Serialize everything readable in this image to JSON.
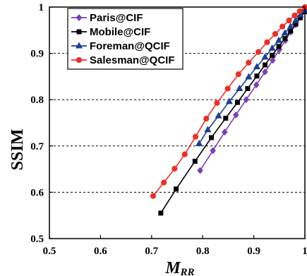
{
  "chart_data": {
    "type": "line",
    "title": "",
    "ylabel": "SSIM",
    "xlabel": {
      "main": "M",
      "sub": "RR"
    },
    "xlim": [
      0.5,
      1.0
    ],
    "ylim": [
      0.5,
      1.0
    ],
    "xticks": [
      "0.5",
      "0.6",
      "0.7",
      "0.8",
      "0.9",
      "1"
    ],
    "yticks": [
      "0.5",
      "0.6",
      "0.7",
      "0.8",
      "0.9",
      "1"
    ],
    "xtick_values": [
      0.5,
      0.6,
      0.7,
      0.8,
      0.9,
      1.0
    ],
    "ytick_values": [
      0.5,
      0.6,
      0.7,
      0.8,
      0.9,
      1.0
    ],
    "grid": "horizontal-dashed",
    "legend_position": "top-left",
    "series": [
      {
        "name": "Paris@CIF",
        "color": "#7b3fb5",
        "marker": "diamond",
        "x": [
          0.795,
          0.82,
          0.843,
          0.865,
          0.885,
          0.905,
          0.922,
          0.937,
          0.95,
          0.962,
          0.972,
          0.982,
          0.991,
          1.0
        ],
        "y": [
          0.647,
          0.69,
          0.73,
          0.767,
          0.8,
          0.832,
          0.86,
          0.885,
          0.908,
          0.928,
          0.946,
          0.962,
          0.978,
          0.99
        ]
      },
      {
        "name": "Mobile@CIF",
        "color": "#000000",
        "marker": "square",
        "x": [
          0.718,
          0.748,
          0.785,
          0.817,
          0.845,
          0.868,
          0.888,
          0.906,
          0.922,
          0.936,
          0.949,
          0.961,
          0.972,
          0.982,
          0.991,
          1.0
        ],
        "y": [
          0.555,
          0.607,
          0.667,
          0.718,
          0.76,
          0.794,
          0.824,
          0.851,
          0.875,
          0.896,
          0.915,
          0.932,
          0.948,
          0.963,
          0.977,
          0.99
        ]
      },
      {
        "name": "Foreman@QCIF",
        "color": "#1f3f8f",
        "marker": "triangle",
        "x": [
          0.793,
          0.81,
          0.831,
          0.852,
          0.872,
          0.89,
          0.906,
          0.922,
          0.936,
          0.949,
          0.961,
          0.972,
          0.982,
          0.991,
          1.0
        ],
        "y": [
          0.705,
          0.735,
          0.765,
          0.796,
          0.824,
          0.849,
          0.871,
          0.892,
          0.911,
          0.928,
          0.944,
          0.958,
          0.971,
          0.983,
          0.993
        ]
      },
      {
        "name": "Salesman@QCIF",
        "color": "#e8302a",
        "marker": "circle",
        "x": [
          0.703,
          0.724,
          0.745,
          0.765,
          0.786,
          0.807,
          0.828,
          0.849,
          0.87,
          0.89,
          0.909,
          0.926,
          0.942,
          0.956,
          0.969,
          0.98,
          0.99,
          1.0
        ],
        "y": [
          0.592,
          0.621,
          0.651,
          0.682,
          0.72,
          0.759,
          0.793,
          0.824,
          0.855,
          0.88,
          0.903,
          0.924,
          0.942,
          0.958,
          0.971,
          0.982,
          0.991,
          1.0
        ]
      }
    ]
  }
}
